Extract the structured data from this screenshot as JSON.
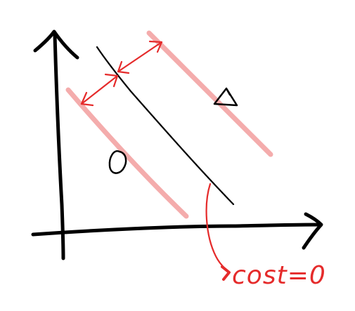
{
  "annotation": {
    "cost_label": "cost=0"
  },
  "colors": {
    "ink": "#000000",
    "red": "#e52b2b",
    "pink": "#f3a3a3"
  },
  "icons": {
    "class_circle": "circle-marker-icon",
    "class_triangle": "triangle-marker-icon",
    "pointer": "arrowhead-icon"
  }
}
